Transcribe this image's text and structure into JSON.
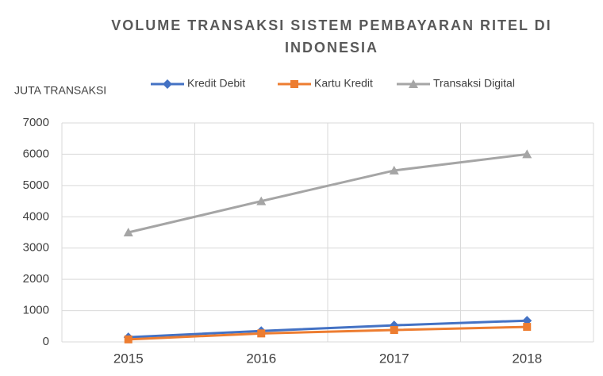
{
  "chart_data": {
    "type": "line",
    "title": "VOLUME TRANSAKSI SISTEM PEMBAYARAN RITEL DI INDONESIA",
    "y_label": "JUTA TRANSAKSI",
    "categories": [
      "2015",
      "2016",
      "2017",
      "2018"
    ],
    "series": [
      {
        "name": "Kredit Debit",
        "color": "#4472c4",
        "marker": "diamond",
        "values": [
          150,
          350,
          530,
          680
        ]
      },
      {
        "name": "Kartu Kredit",
        "color": "#ed7d31",
        "marker": "square",
        "values": [
          80,
          270,
          380,
          480
        ]
      },
      {
        "name": "Transaksi Digital",
        "color": "#a5a5a5",
        "marker": "triangle",
        "values": [
          3500,
          4500,
          5480,
          6000
        ]
      }
    ],
    "ylim": [
      0,
      7000
    ],
    "yticks": [
      0,
      1000,
      2000,
      3000,
      4000,
      5000,
      6000,
      7000
    ],
    "grid": true,
    "legend": "top"
  }
}
